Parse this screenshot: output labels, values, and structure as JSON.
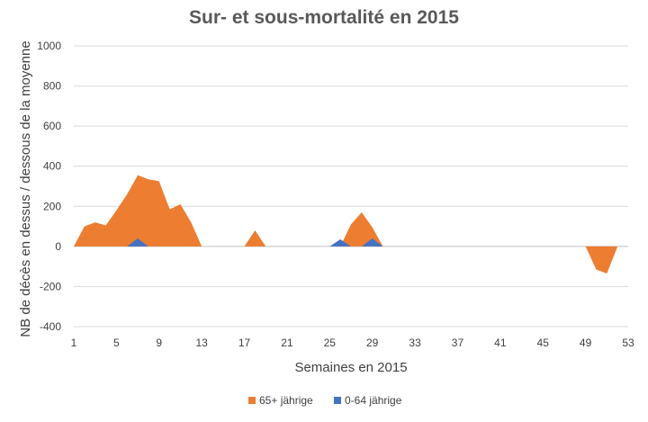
{
  "chart_data": {
    "type": "area",
    "title": "Sur- et sous-mortalité en 2015",
    "xlabel": "Semaines en 2015",
    "ylabel": "NB de décès en dessus / dessous de la moyenne",
    "xlim": [
      1,
      53
    ],
    "ylim": [
      -400,
      1000
    ],
    "x_ticks": [
      1,
      5,
      9,
      13,
      17,
      21,
      25,
      29,
      33,
      37,
      41,
      45,
      49,
      53
    ],
    "y_ticks": [
      -400,
      -200,
      0,
      200,
      400,
      600,
      800,
      1000
    ],
    "grid": true,
    "legend": "bottom",
    "series": [
      {
        "name": "65+ jährige",
        "color": "#ED7D31",
        "x": [
          1,
          2,
          3,
          4,
          5,
          6,
          7,
          8,
          9,
          10,
          11,
          12,
          13,
          14,
          15,
          16,
          17,
          18,
          19,
          20,
          21,
          22,
          23,
          24,
          25,
          26,
          27,
          28,
          29,
          30,
          31,
          32,
          33,
          34,
          35,
          36,
          37,
          38,
          39,
          40,
          41,
          42,
          43,
          44,
          45,
          46,
          47,
          48,
          49,
          50,
          51,
          52
        ],
        "values": [
          0,
          100,
          120,
          105,
          180,
          260,
          355,
          335,
          325,
          185,
          210,
          120,
          0,
          0,
          0,
          0,
          0,
          80,
          0,
          0,
          0,
          0,
          0,
          0,
          0,
          0,
          110,
          170,
          95,
          0,
          0,
          0,
          0,
          0,
          0,
          0,
          0,
          0,
          0,
          0,
          0,
          0,
          0,
          0,
          0,
          0,
          0,
          0,
          0,
          -115,
          -135,
          0
        ]
      },
      {
        "name": "0-64 jährige",
        "color": "#4472C4",
        "x": [
          1,
          2,
          3,
          4,
          5,
          6,
          7,
          8,
          9,
          10,
          11,
          12,
          13,
          14,
          15,
          16,
          17,
          18,
          19,
          20,
          21,
          22,
          23,
          24,
          25,
          26,
          27,
          28,
          29,
          30,
          31,
          32,
          33,
          34,
          35,
          36,
          37,
          38,
          39,
          40,
          41,
          42,
          43,
          44,
          45,
          46,
          47,
          48,
          49,
          50,
          51,
          52
        ],
        "values": [
          0,
          0,
          0,
          0,
          0,
          0,
          40,
          0,
          0,
          0,
          0,
          0,
          0,
          0,
          0,
          0,
          0,
          0,
          0,
          0,
          0,
          0,
          0,
          0,
          0,
          35,
          0,
          0,
          40,
          0,
          0,
          0,
          0,
          0,
          0,
          0,
          0,
          0,
          0,
          0,
          0,
          0,
          0,
          0,
          0,
          0,
          0,
          0,
          0,
          0,
          0,
          0
        ]
      }
    ]
  }
}
